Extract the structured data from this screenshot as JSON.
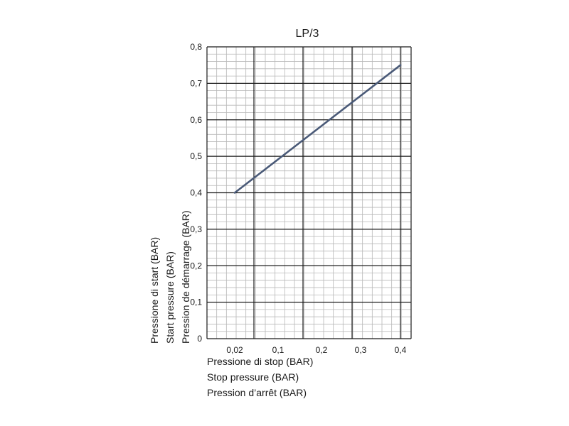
{
  "chart_data": {
    "type": "line",
    "title": "LP/3",
    "xlabel_lines": [
      "Pressione di stop (BAR)",
      "Stop pressure (BAR)",
      "Pression d’arrêt (BAR)"
    ],
    "ylabel_lines": [
      "Pressione di start (BAR)",
      "Start pressure (BAR)",
      "Pression de démarrage  (BAR)"
    ],
    "xlim": [
      0,
      0.4
    ],
    "ylim": [
      0,
      0.8
    ],
    "x_ticks": [
      {
        "label": "0,02",
        "value": 0.02
      },
      {
        "label": "0,1",
        "value": 0.1
      },
      {
        "label": "0,2",
        "value": 0.2
      },
      {
        "label": "0,3",
        "value": 0.3
      },
      {
        "label": "0,4",
        "value": 0.4
      }
    ],
    "y_ticks": [
      {
        "label": "0",
        "value": 0
      },
      {
        "label": "0,1",
        "value": 0.1
      },
      {
        "label": "0,2",
        "value": 0.2
      },
      {
        "label": "0,3",
        "value": 0.3
      },
      {
        "label": "0,4",
        "value": 0.4
      },
      {
        "label": "0,5",
        "value": 0.5
      },
      {
        "label": "0,6",
        "value": 0.6
      },
      {
        "label": "0,7",
        "value": 0.7
      },
      {
        "label": "0,8",
        "value": 0.8
      }
    ],
    "grid": true,
    "series": [
      {
        "color": "#4a5a78",
        "points": [
          {
            "x": 0.02,
            "y": 0.4
          },
          {
            "x": 0.4,
            "y": 0.75
          }
        ]
      }
    ]
  }
}
